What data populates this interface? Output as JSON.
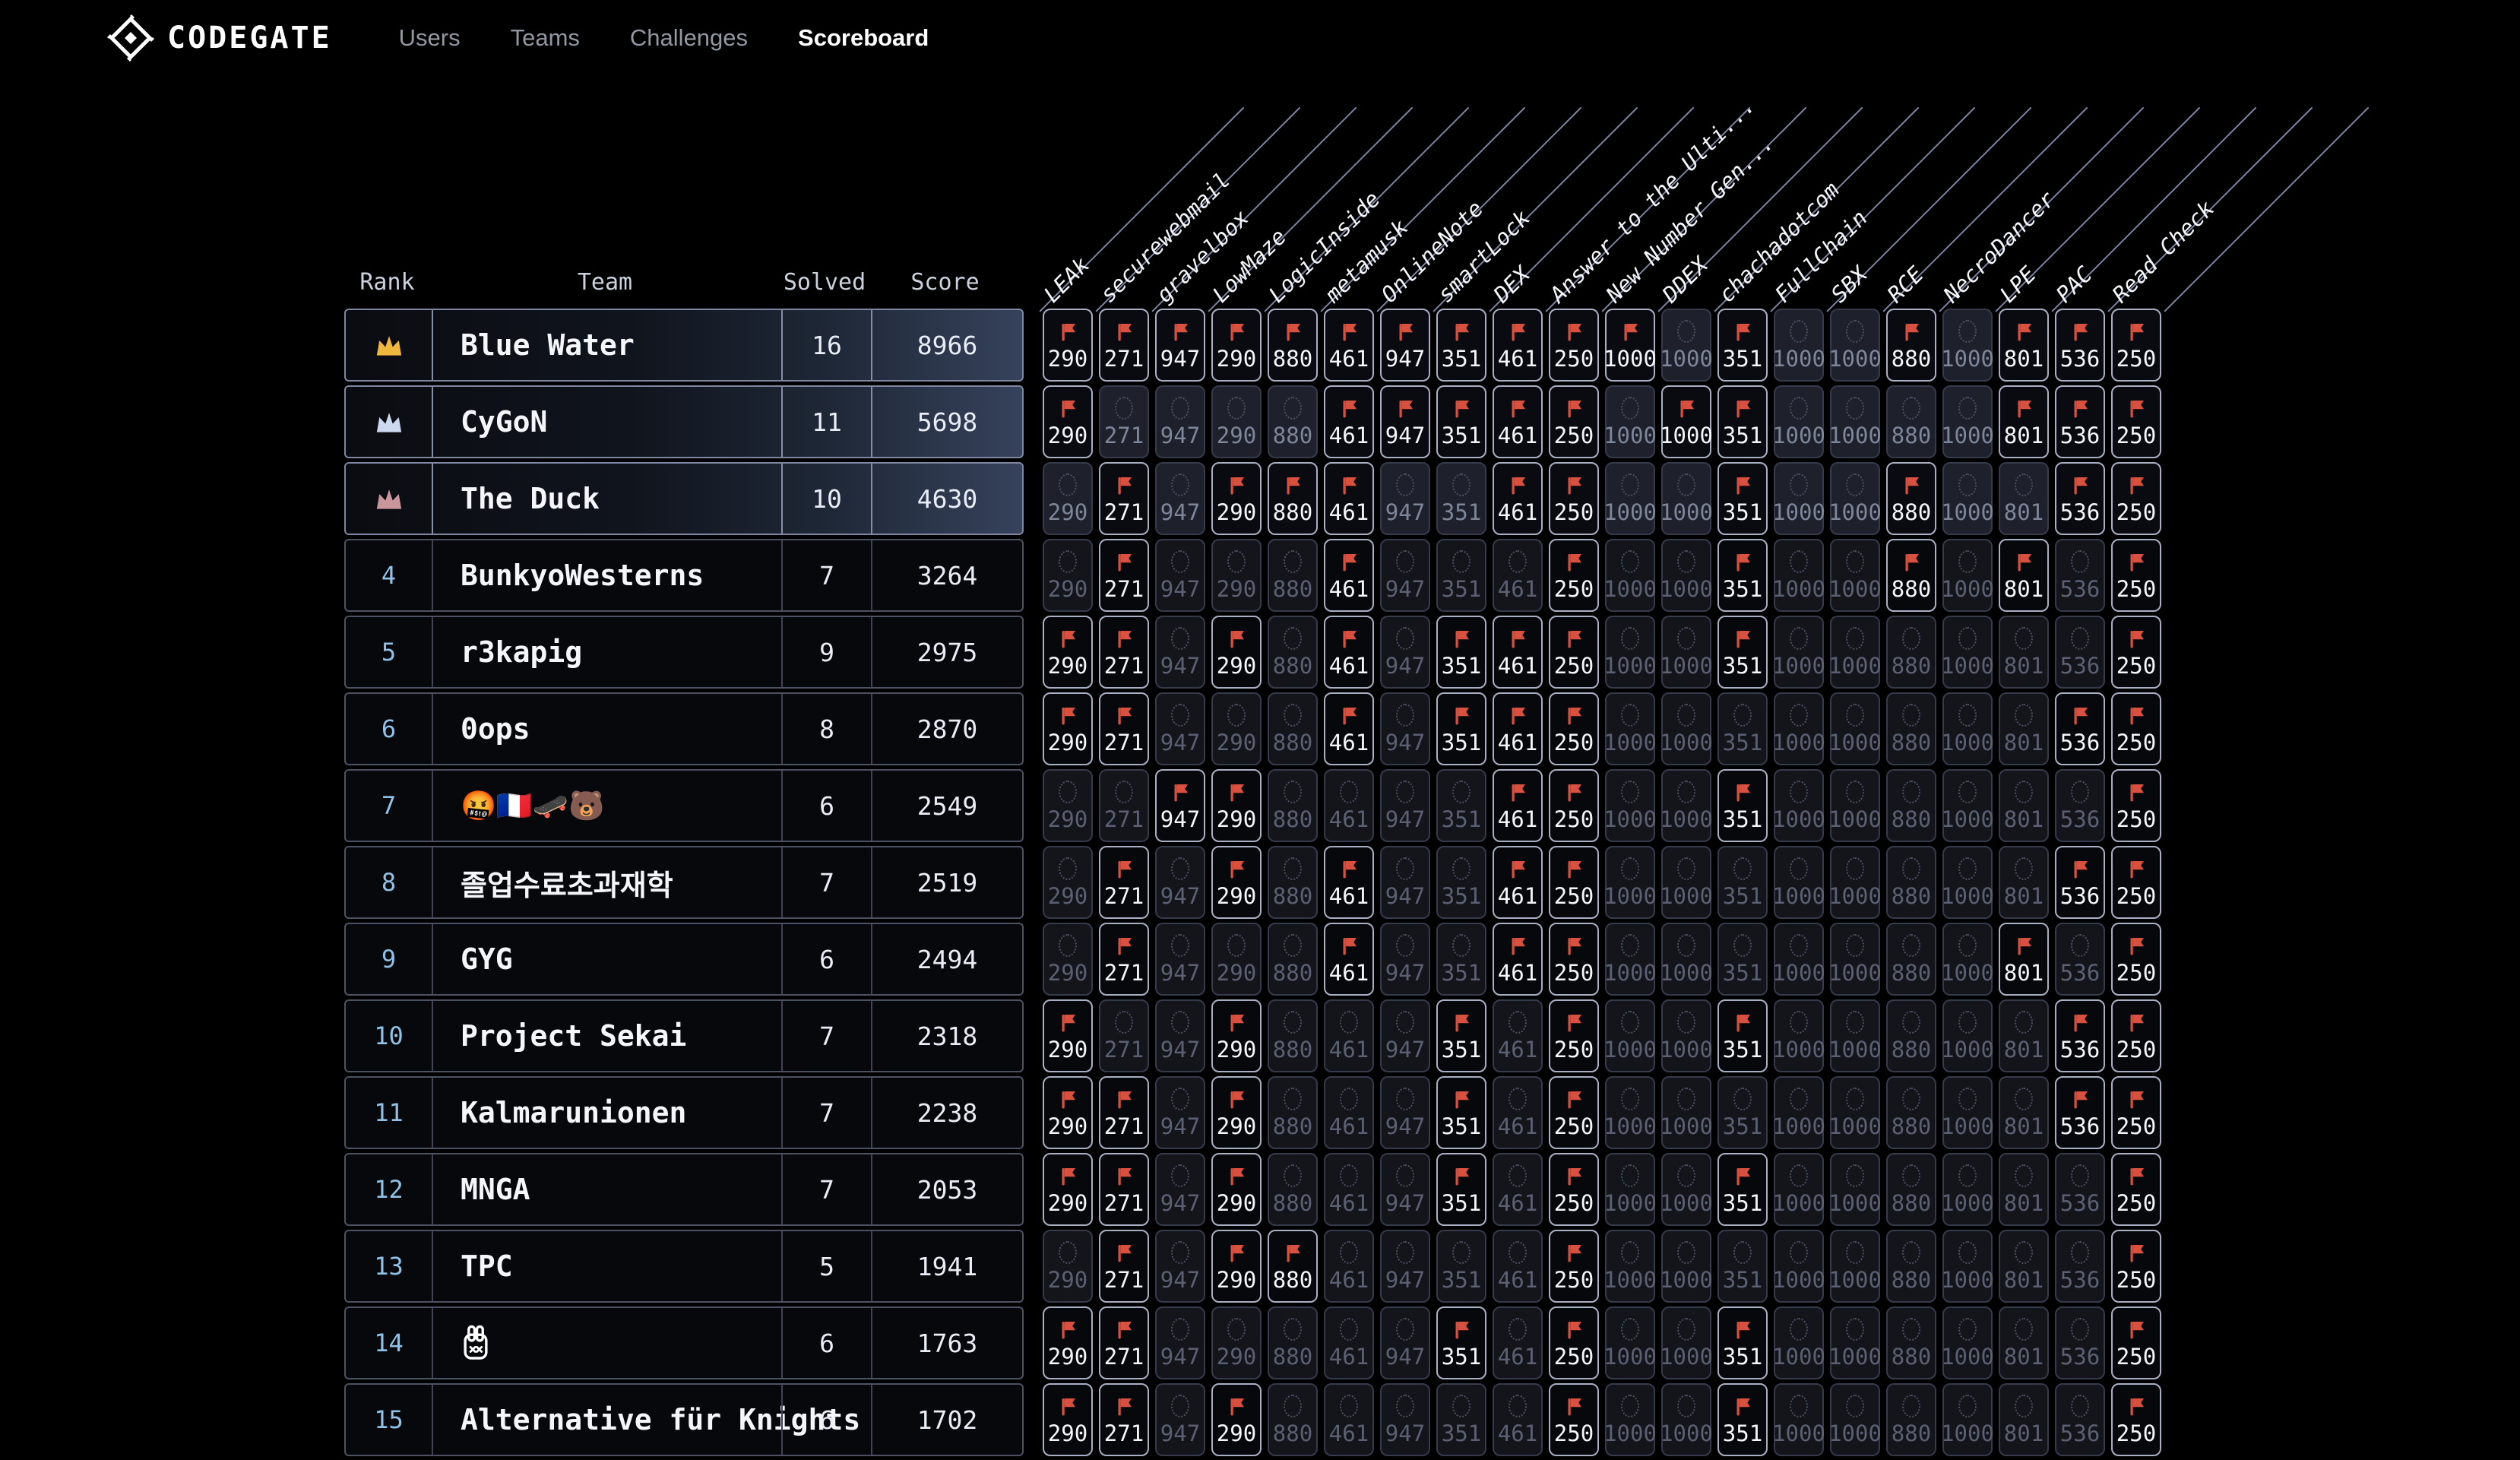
{
  "nav": {
    "brand": "CODEGATE",
    "items": [
      {
        "label": "Users",
        "active": false
      },
      {
        "label": "Teams",
        "active": false
      },
      {
        "label": "Challenges",
        "active": false
      },
      {
        "label": "Scoreboard",
        "active": true
      }
    ]
  },
  "colors": {
    "background": "#000000",
    "flag_red": "#d9503f",
    "rank_number_blue": "#8fc2e6",
    "crown_gold": "#efb73d",
    "crown_silver": "#cdd9ef",
    "crown_bronze": "#c9969b",
    "header_line": "#7d84a2",
    "highlight_row_gradient_end": "#36425c"
  },
  "table": {
    "headers": {
      "rank": "Rank",
      "team": "Team",
      "solved": "Solved",
      "score": "Score"
    },
    "challenges": [
      {
        "name": "LEAk",
        "points": 290
      },
      {
        "name": "securewebmail",
        "points": 271
      },
      {
        "name": "gravelbox",
        "points": 947
      },
      {
        "name": "LowMaze",
        "points": 290
      },
      {
        "name": "LogicInside",
        "points": 880
      },
      {
        "name": "metamusk",
        "points": 461
      },
      {
        "name": "OnlineNote",
        "points": 947
      },
      {
        "name": "smartLock",
        "points": 351
      },
      {
        "name": "DEX",
        "points": 461
      },
      {
        "name": "Answer to the Ulti...",
        "points": 250
      },
      {
        "name": "New Number Gen...",
        "points": 1000
      },
      {
        "name": "DDEX",
        "points": 1000
      },
      {
        "name": "chachadotcom",
        "points": 351
      },
      {
        "name": "FullChain",
        "points": 1000
      },
      {
        "name": "SBX",
        "points": 1000
      },
      {
        "name": "RCE",
        "points": 880
      },
      {
        "name": "NecroDancer",
        "points": 1000
      },
      {
        "name": "LPE",
        "points": 801
      },
      {
        "name": "PAC",
        "points": 536
      },
      {
        "name": "Read Check",
        "points": 250
      }
    ],
    "teams": [
      {
        "rank": 1,
        "crown": "gold",
        "name": "Blue Water",
        "solved": 16,
        "score": 8966,
        "flags": [
          1,
          1,
          1,
          1,
          1,
          1,
          1,
          1,
          1,
          1,
          1,
          0,
          1,
          0,
          0,
          1,
          0,
          1,
          1,
          1
        ]
      },
      {
        "rank": 2,
        "crown": "silver",
        "name": "CyGoN",
        "solved": 11,
        "score": 5698,
        "flags": [
          1,
          0,
          0,
          0,
          0,
          1,
          1,
          1,
          1,
          1,
          0,
          1,
          1,
          0,
          0,
          0,
          0,
          1,
          1,
          1
        ]
      },
      {
        "rank": 3,
        "crown": "bronze",
        "name": "The Duck",
        "solved": 10,
        "score": 4630,
        "flags": [
          0,
          1,
          0,
          1,
          1,
          1,
          0,
          0,
          1,
          1,
          0,
          0,
          1,
          0,
          0,
          1,
          0,
          0,
          1,
          1
        ]
      },
      {
        "rank": 4,
        "crown": null,
        "name": "BunkyoWesterns",
        "solved": 7,
        "score": 3264,
        "flags": [
          0,
          1,
          0,
          0,
          0,
          1,
          0,
          0,
          0,
          1,
          0,
          0,
          1,
          0,
          0,
          1,
          0,
          1,
          0,
          1
        ]
      },
      {
        "rank": 5,
        "crown": null,
        "name": "r3kapig",
        "solved": 9,
        "score": 2975,
        "flags": [
          1,
          1,
          0,
          1,
          0,
          1,
          0,
          1,
          1,
          1,
          0,
          0,
          1,
          0,
          0,
          0,
          0,
          0,
          0,
          1
        ]
      },
      {
        "rank": 6,
        "crown": null,
        "name": "0ops",
        "solved": 8,
        "score": 2870,
        "flags": [
          1,
          1,
          0,
          0,
          0,
          1,
          0,
          1,
          1,
          1,
          0,
          0,
          0,
          0,
          0,
          0,
          0,
          0,
          1,
          1
        ]
      },
      {
        "rank": 7,
        "crown": null,
        "name": "🤬🇫🇷🛹🐻",
        "solved": 6,
        "score": 2549,
        "flags": [
          0,
          0,
          1,
          1,
          0,
          0,
          0,
          0,
          1,
          1,
          0,
          0,
          1,
          0,
          0,
          0,
          0,
          0,
          0,
          1
        ]
      },
      {
        "rank": 8,
        "crown": null,
        "name": "졸업수료초과재학",
        "solved": 7,
        "score": 2519,
        "flags": [
          0,
          1,
          0,
          1,
          0,
          1,
          0,
          0,
          1,
          1,
          0,
          0,
          0,
          0,
          0,
          0,
          0,
          0,
          1,
          1
        ]
      },
      {
        "rank": 9,
        "crown": null,
        "name": "GYG",
        "solved": 6,
        "score": 2494,
        "flags": [
          0,
          1,
          0,
          0,
          0,
          1,
          0,
          0,
          1,
          1,
          0,
          0,
          0,
          0,
          0,
          0,
          0,
          1,
          0,
          1
        ]
      },
      {
        "rank": 10,
        "crown": null,
        "name": "Project Sekai",
        "solved": 7,
        "score": 2318,
        "flags": [
          1,
          0,
          0,
          1,
          0,
          0,
          0,
          1,
          0,
          1,
          0,
          0,
          1,
          0,
          0,
          0,
          0,
          0,
          1,
          1
        ]
      },
      {
        "rank": 11,
        "crown": null,
        "name": "Kalmarunionen",
        "solved": 7,
        "score": 2238,
        "flags": [
          1,
          1,
          0,
          1,
          0,
          0,
          0,
          1,
          0,
          1,
          0,
          0,
          0,
          0,
          0,
          0,
          0,
          0,
          1,
          1
        ]
      },
      {
        "rank": 12,
        "crown": null,
        "name": "MNGA",
        "solved": 7,
        "score": 2053,
        "flags": [
          1,
          1,
          0,
          1,
          0,
          0,
          0,
          1,
          0,
          1,
          0,
          0,
          1,
          0,
          0,
          0,
          0,
          0,
          0,
          1
        ]
      },
      {
        "rank": 13,
        "crown": null,
        "name": "TPC",
        "solved": 5,
        "score": 1941,
        "flags": [
          0,
          1,
          0,
          1,
          1,
          0,
          0,
          0,
          0,
          1,
          0,
          0,
          0,
          0,
          0,
          0,
          0,
          0,
          0,
          1
        ]
      },
      {
        "rank": 14,
        "crown": null,
        "name": "",
        "glyph": "rabbit-icon",
        "solved": 6,
        "score": 1763,
        "flags": [
          1,
          1,
          0,
          0,
          0,
          0,
          0,
          1,
          0,
          1,
          0,
          0,
          1,
          0,
          0,
          0,
          0,
          0,
          0,
          1
        ]
      },
      {
        "rank": 15,
        "crown": null,
        "name": "Alternative für Knights",
        "solved": 6,
        "score": 1702,
        "flags": [
          1,
          1,
          0,
          1,
          0,
          0,
          0,
          0,
          0,
          1,
          0,
          0,
          1,
          0,
          0,
          0,
          0,
          0,
          0,
          1
        ]
      }
    ]
  }
}
